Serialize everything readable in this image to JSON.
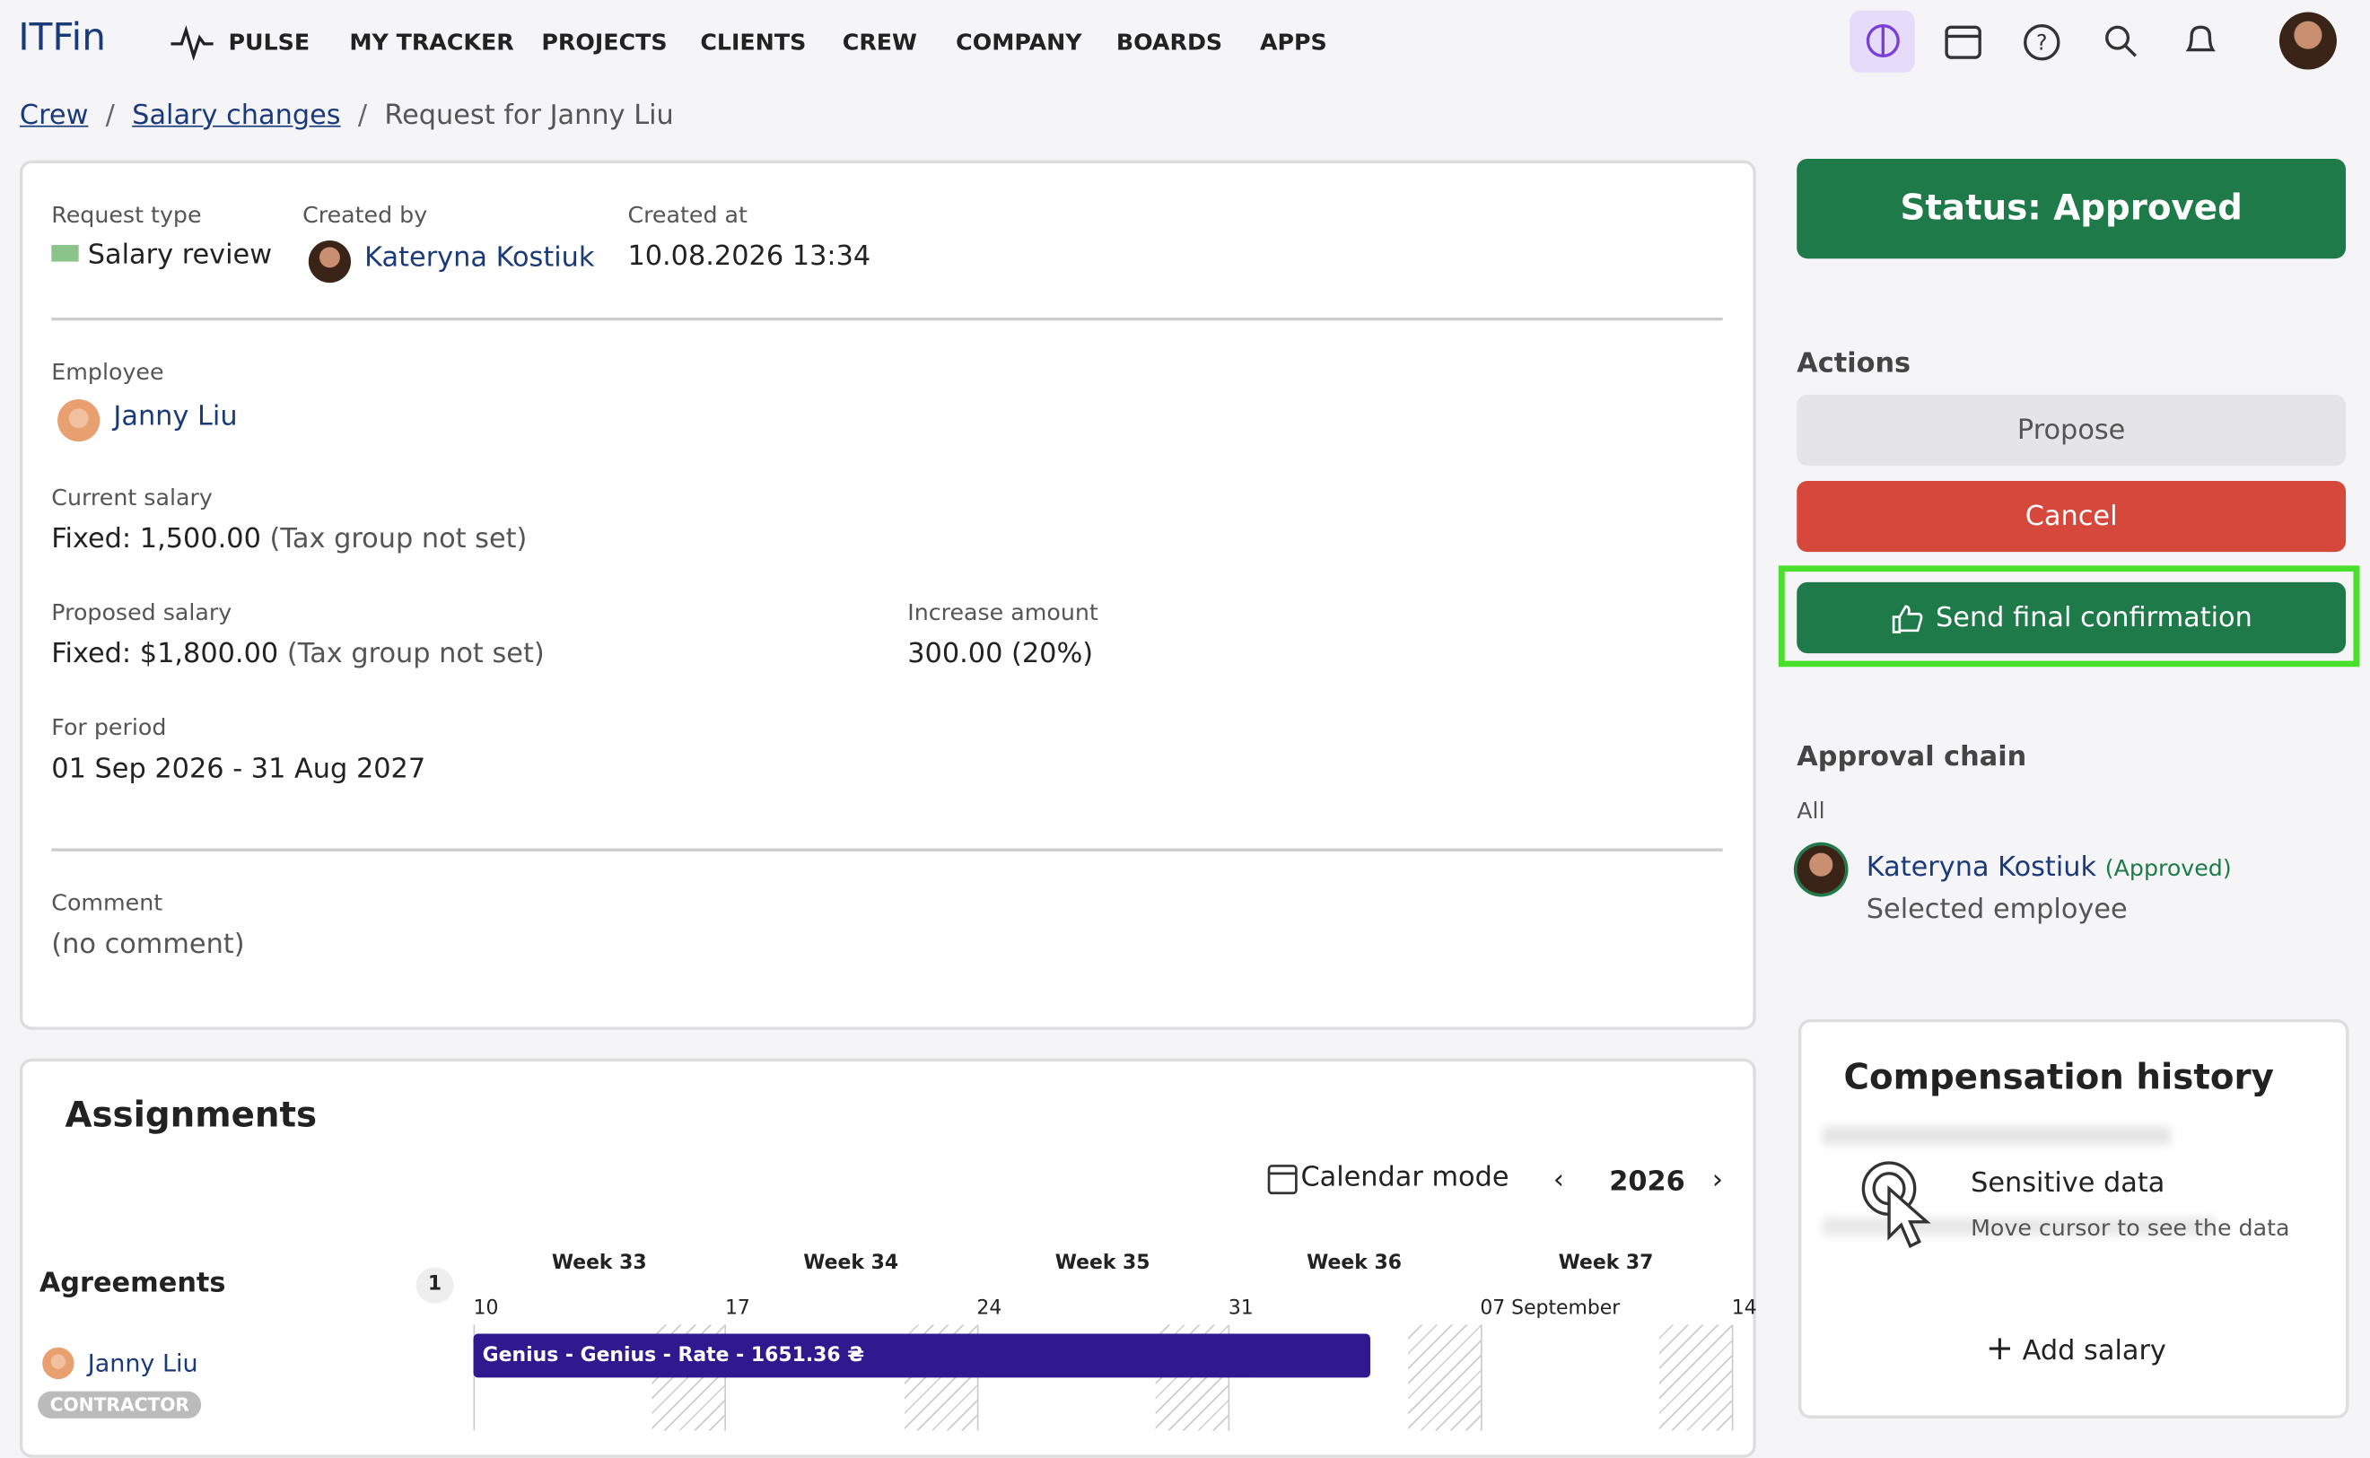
{
  "nav": {
    "logo": "ITFin",
    "items": [
      "PULSE",
      "MY TRACKER",
      "PROJECTS",
      "CLIENTS",
      "CREW",
      "COMPANY",
      "BOARDS",
      "APPS"
    ]
  },
  "breadcrumb": [
    "Crew",
    "Salary changes",
    "Request for Janny Liu"
  ],
  "request": {
    "type_label": "Request type",
    "type": "Salary review",
    "created_by_label": "Created by",
    "created_by": "Kateryna Kostiuk",
    "created_at_label": "Created at",
    "created_at": "10.08.2026 13:34",
    "employee_label": "Employee",
    "employee": "Janny Liu",
    "current_salary_label": "Current salary",
    "current_salary": "Fixed: 1,500.00",
    "current_salary_note": "(Tax group not set)",
    "proposed_salary_label": "Proposed salary",
    "proposed_salary": "Fixed: $1,800.00",
    "proposed_salary_note": "(Tax group not set)",
    "increase_label": "Increase amount",
    "increase": "300.00 (20%)",
    "period_label": "For period",
    "period": "01 Sep 2026 - 31 Aug 2027",
    "comment_label": "Comment",
    "comment": "(no comment)"
  },
  "sidebar": {
    "status": "Status: Approved",
    "actions_title": "Actions",
    "actions": [
      "Propose",
      "Cancel",
      "Send final confirmation"
    ],
    "approval_title": "Approval chain",
    "approval_scope": "All",
    "approver": "Kateryna Kostiuk",
    "approver_status": "(Approved)",
    "approver_role": "Selected employee"
  },
  "compensation": {
    "title": "Compensation history",
    "sensitive_title": "Sensitive data",
    "sensitive_hint": "Move cursor to see the data",
    "add": "Add salary"
  },
  "assignments": {
    "title": "Assignments",
    "calendar_mode": "Calendar mode",
    "year": "2026",
    "agreements_label": "Agreements",
    "agreements_count": 1,
    "weeks": [
      "Week 33",
      "Week 34",
      "Week 35",
      "Week 36",
      "Week 37"
    ],
    "dates": [
      "10",
      "17",
      "24",
      "31",
      "07 September",
      "14"
    ],
    "person": "Janny Liu",
    "person_tag": "CONTRACTOR",
    "bar": "Genius - Genius - Rate - 1651.36 ₴"
  }
}
